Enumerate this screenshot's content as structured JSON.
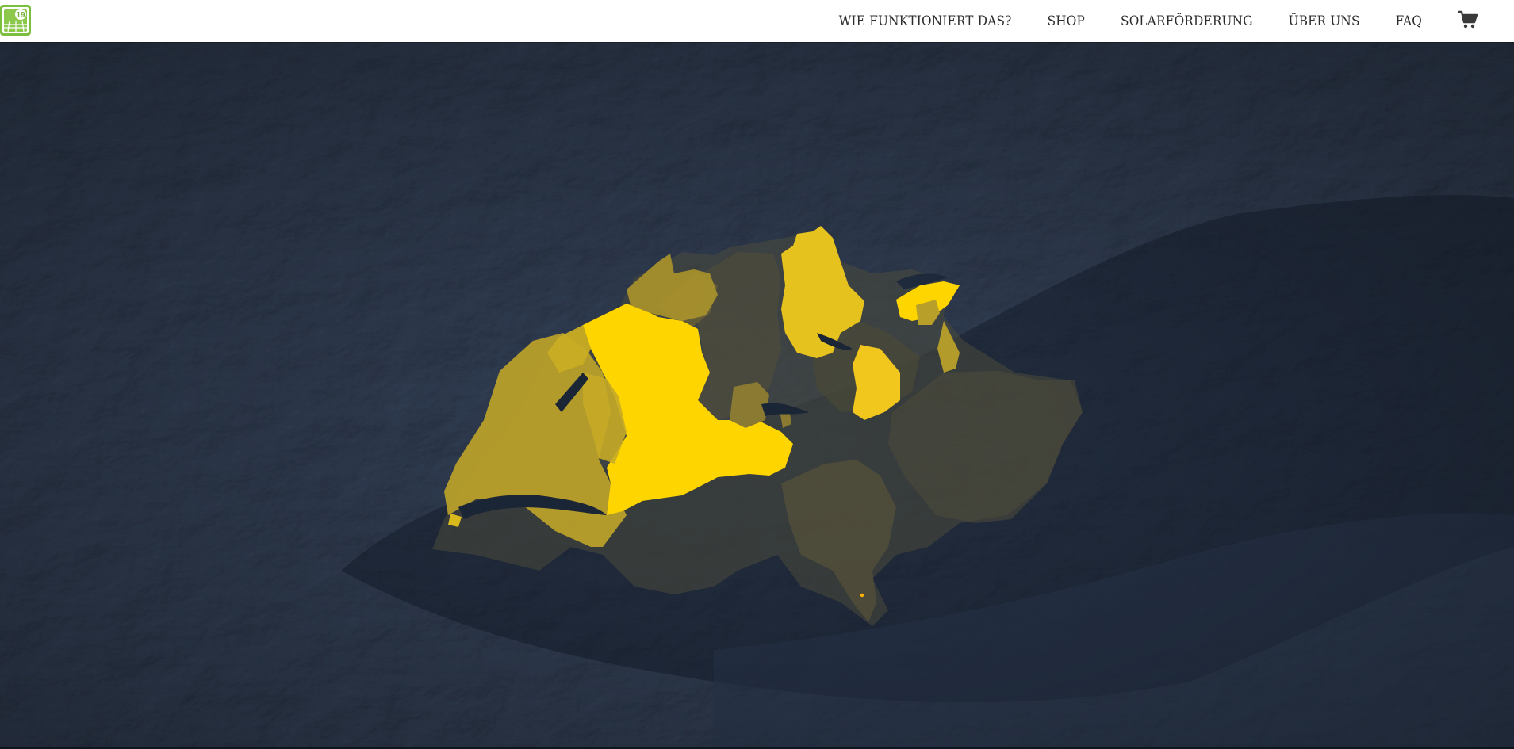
{
  "header": {
    "logo": {
      "text": "19",
      "icon": "solar-panel-logo-icon"
    },
    "nav": [
      {
        "id": "how",
        "label": "WIE FUNKTIONIERT DAS?"
      },
      {
        "id": "shop",
        "label": "SHOP"
      },
      {
        "id": "subsidy",
        "label": "SOLARFÖRDERUNG"
      },
      {
        "id": "about",
        "label": "ÜBER UNS"
      },
      {
        "id": "faq",
        "label": "FAQ"
      }
    ],
    "cart_icon": "shopping-cart-icon"
  },
  "map": {
    "background": "#1e2837",
    "colors": {
      "highlight_strong": "#ffd500",
      "highlight_medium": "#d9b91c",
      "highlight_weak": "#a7902c",
      "muted": "#555140",
      "muted_dark": "#3e4036"
    }
  }
}
